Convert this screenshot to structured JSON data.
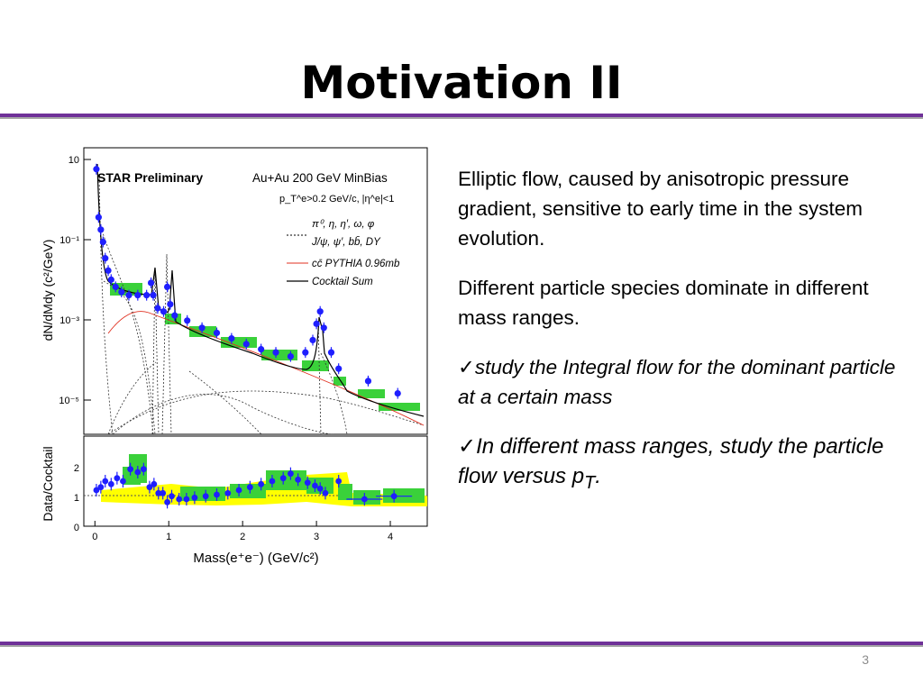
{
  "slide": {
    "title": "Motivation II",
    "page_number": "3",
    "paragraph1": "Elliptic flow, caused by anisotropic pressure gradient, sensitive to early time in the system evolution.",
    "paragraph2": "Different particle species dominate in different mass ranges.",
    "bullet1": "study the Integral flow for the dominant particle at  a certain mass",
    "bullet2_main": "In different mass ranges, study the particle flow versus p",
    "bullet2_sub": "T",
    "bullet2_end": ".",
    "check_mark": "✓",
    "accent_color": "#6f3198"
  },
  "chart_data": [
    {
      "type": "scatter",
      "text": {
        "ylabel": "dN/dMdy (c²/GeV)",
        "preliminary": "STAR Preliminary",
        "system": "Au+Au 200 GeV MinBias",
        "cuts": "p_T^e>0.2 GeV/c, |η^e|<1"
      },
      "yscale": "log",
      "ylim": [
        1e-06,
        10
      ],
      "xlim": [
        -0.15,
        4.5
      ],
      "yticks": [
        "10",
        "10⁻¹",
        "10⁻³",
        "10⁻⁵"
      ],
      "legend": [
        "π⁰, η, η′, ω, φ",
        "J/ψ, ψ′, bb̄, DY",
        "cc̄ PYTHIA 0.96mb",
        "Cocktail Sum"
      ],
      "legend_colors": [
        "#000000",
        "#000000",
        "#e03020",
        "#000000"
      ],
      "series": [
        {
          "name": "Au+Au 200 GeV MinBias",
          "color": "#1f1fff",
          "x": [
            0.02,
            0.05,
            0.08,
            0.11,
            0.14,
            0.18,
            0.22,
            0.28,
            0.36,
            0.46,
            0.58,
            0.7,
            0.76,
            0.79,
            0.85,
            0.93,
            0.98,
            1.02,
            1.08,
            1.25,
            1.45,
            1.65,
            1.85,
            2.05,
            2.25,
            2.45,
            2.65,
            2.85,
            2.95,
            3.0,
            3.05,
            3.1,
            3.2,
            3.3,
            3.7,
            4.1
          ],
          "y": [
            3.0,
            0.2,
            0.1,
            0.05,
            0.02,
            0.01,
            0.006,
            0.004,
            0.003,
            0.0025,
            0.0025,
            0.0025,
            0.005,
            0.0025,
            0.0012,
            0.001,
            0.004,
            0.0015,
            0.0008,
            0.0006,
            0.0004,
            0.0003,
            0.00022,
            0.00016,
            0.00012,
            0.0001,
            8e-05,
            0.0001,
            0.0002,
            0.0005,
            0.001,
            0.0004,
            0.0001,
            4e-05,
            2e-05,
            1e-05
          ]
        }
      ]
    },
    {
      "type": "scatter",
      "text": {
        "ylabel": "Data/Cocktail",
        "xlabel": "Mass(e⁺e⁻) (GeV/c²)"
      },
      "ylim": [
        0,
        3
      ],
      "xlim": [
        -0.15,
        4.5
      ],
      "xticks": [
        0,
        1,
        2,
        3,
        4
      ],
      "yticks": [
        0,
        1,
        2
      ],
      "series": [
        {
          "name": "Data/Cocktail",
          "color": "#1f1fff",
          "x": [
            0.02,
            0.08,
            0.14,
            0.22,
            0.3,
            0.38,
            0.48,
            0.58,
            0.66,
            0.74,
            0.8,
            0.86,
            0.92,
            0.98,
            1.04,
            1.14,
            1.24,
            1.35,
            1.5,
            1.65,
            1.8,
            1.95,
            2.1,
            2.25,
            2.4,
            2.55,
            2.65,
            2.75,
            2.88,
            2.98,
            3.05,
            3.12,
            3.3,
            3.65,
            4.05
          ],
          "y": [
            1.2,
            1.3,
            1.5,
            1.4,
            1.6,
            1.5,
            1.9,
            1.8,
            1.9,
            1.3,
            1.4,
            1.1,
            1.1,
            0.8,
            1.0,
            0.9,
            0.9,
            0.95,
            1.0,
            1.05,
            1.1,
            1.2,
            1.3,
            1.4,
            1.5,
            1.6,
            1.75,
            1.55,
            1.45,
            1.35,
            1.25,
            1.1,
            1.5,
            0.9,
            1.0
          ]
        }
      ]
    }
  ]
}
